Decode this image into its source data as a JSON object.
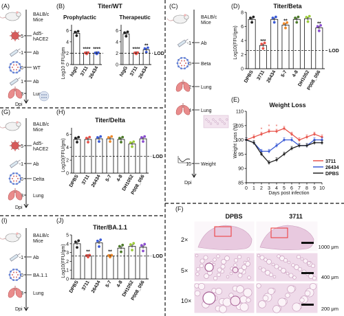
{
  "panels": {
    "A": {
      "label": "(A)",
      "timeline": [
        "BALB/c",
        "Mice",
        "-5",
        "Ad5-",
        "hACE2",
        "-1",
        "Ab",
        "0",
        "WT",
        "1",
        "Ab",
        "3",
        "Lung",
        "Dpi"
      ]
    },
    "B": {
      "label": "(B)",
      "title": "Titer/WT",
      "sub_left": "Prophylactic",
      "sub_right": "Therapeutic",
      "ylabel": "Log10 FFU/gm",
      "lod": "LOD",
      "colors": [
        "#222222",
        "#e8534a",
        "#3b5bd6"
      ]
    },
    "C": {
      "label": "(C)",
      "timeline": [
        "BALB/c",
        "Mice",
        "-1",
        "Ab",
        "0",
        "Beta",
        "2",
        "Lung",
        "4",
        "Lung",
        "10",
        "Weight",
        "Dpi"
      ]
    },
    "D": {
      "label": "(D)",
      "title": "Titer/Beta",
      "ylabel": "Log10(FFU/gm)",
      "lod": "LOD",
      "colors": [
        "#222222",
        "#e8534a",
        "#3b5bd6",
        "#f08a2a",
        "#4d7a2a",
        "#9dcc3a",
        "#8b4fd0"
      ]
    },
    "E": {
      "label": "(E)",
      "title": "Weight Loss",
      "ylabel": "Weight Loss (%)",
      "xlabel": "Days post infection",
      "legend": [
        "3711",
        "26434",
        "DPBS"
      ],
      "colors": [
        "#e8534a",
        "#3b5bd6",
        "#222222"
      ]
    },
    "F": {
      "label": "(F)",
      "col_left": "DPBS",
      "col_right": "3711",
      "rows": [
        "2×",
        "5×",
        "10×"
      ],
      "scales": [
        "1000 μm",
        "400 μm",
        "200 μm"
      ]
    },
    "G": {
      "label": "(G)",
      "timeline": [
        "BALB/c",
        "Mice",
        "-5",
        "Ad5-",
        "hACE2",
        "-1",
        "Ab",
        "0",
        "Delta",
        "3",
        "Lung",
        "Dpi"
      ]
    },
    "H": {
      "label": "(H)",
      "title": "Titer/Delta",
      "ylabel": "Log10(FFU/gm)",
      "lod": "LOD",
      "colors": [
        "#222222",
        "#e8534a",
        "#3b5bd6",
        "#f08a2a",
        "#4d7a2a",
        "#9dcc3a",
        "#8b4fd0"
      ]
    },
    "I": {
      "label": "(I)",
      "timeline": [
        "BALB/c",
        "Mice",
        "-1",
        "Ab",
        "0",
        "BA.1.1",
        "3",
        "Lung",
        "Dpi"
      ]
    },
    "J": {
      "label": "(J)",
      "title": "Titer/BA.1.1",
      "ylabel": "Log10(FFU/gm)",
      "lod": "LOD",
      "colors": [
        "#222222",
        "#e8534a",
        "#3b5bd6",
        "#f08a2a",
        "#4d7a2a",
        "#9dcc3a",
        "#8b4fd0"
      ]
    }
  },
  "chart_data": [
    {
      "id": "B-left",
      "type": "bar",
      "categories": [
        "hIgG",
        "3711",
        "26434"
      ],
      "values": [
        5.5,
        2.0,
        2.0
      ],
      "annotations": [
        "",
        "****",
        "****"
      ],
      "ylim": [
        0,
        7
      ],
      "yticks": [
        0,
        2,
        4,
        6
      ],
      "lod": 2.0
    },
    {
      "id": "B-right",
      "type": "bar",
      "categories": [
        "hIgG",
        "3711",
        "26434"
      ],
      "values": [
        5.4,
        2.0,
        2.6
      ],
      "annotations": [
        "",
        "****",
        "**"
      ],
      "ylim": [
        0,
        7
      ],
      "yticks": [
        0,
        2,
        4,
        6
      ],
      "lod": 2.0
    },
    {
      "id": "D",
      "type": "bar",
      "categories": [
        "DPBS",
        "3711",
        "26434",
        "5-7",
        "4-8",
        "DH1052",
        "P008_056"
      ],
      "values": [
        7.0,
        3.3,
        7.0,
        6.2,
        7.0,
        7.1,
        5.8
      ],
      "annotations": [
        "",
        "***",
        "",
        "**",
        "",
        "",
        "**"
      ],
      "ylim": [
        0,
        8
      ],
      "yticks": [
        0,
        2,
        4,
        6,
        8
      ],
      "lod": 2.6
    },
    {
      "id": "E",
      "type": "line",
      "x": [
        0,
        1,
        2,
        3,
        4,
        5,
        6,
        7,
        8,
        9,
        10
      ],
      "series": [
        {
          "name": "3711",
          "values": [
            100,
            101,
            102,
            103,
            103,
            104,
            102,
            100,
            101,
            102,
            101
          ]
        },
        {
          "name": "26434",
          "values": [
            100,
            99,
            96,
            96,
            98,
            100,
            100,
            98,
            98,
            100,
            100
          ]
        },
        {
          "name": "DPBS",
          "values": [
            100,
            99,
            95,
            92,
            93,
            95,
            97,
            98,
            98,
            99,
            99
          ]
        }
      ],
      "ylim": [
        85,
        110
      ],
      "yticks": [
        85,
        90,
        95,
        100,
        105,
        110
      ],
      "xticks": [
        0,
        1,
        2,
        3,
        4,
        5,
        6,
        7,
        8,
        9,
        10
      ]
    },
    {
      "id": "H",
      "type": "bar",
      "categories": [
        "DPBS",
        "3711",
        "26434",
        "5-7",
        "4-8",
        "DH1052",
        "P008_056"
      ],
      "values": [
        5.2,
        5.2,
        5.3,
        5.3,
        5.2,
        4.5,
        5.3
      ],
      "annotations": [
        "",
        "",
        "",
        "",
        "",
        "",
        ""
      ],
      "ylim": [
        0,
        7
      ],
      "yticks": [
        0,
        2,
        4,
        6
      ],
      "lod": 2.6
    },
    {
      "id": "J",
      "type": "bar",
      "categories": [
        "DPBS",
        "3711",
        "26434",
        "5-7",
        "4-8",
        "DH1052",
        "P008_056"
      ],
      "values": [
        4.0,
        2.6,
        4.1,
        2.6,
        3.5,
        3.7,
        3.6
      ],
      "annotations": [
        "",
        "**",
        "",
        "**",
        "",
        "",
        ""
      ],
      "ylim": [
        0,
        5
      ],
      "yticks": [
        0,
        1,
        2,
        3,
        4,
        5
      ],
      "lod": 2.6
    }
  ]
}
